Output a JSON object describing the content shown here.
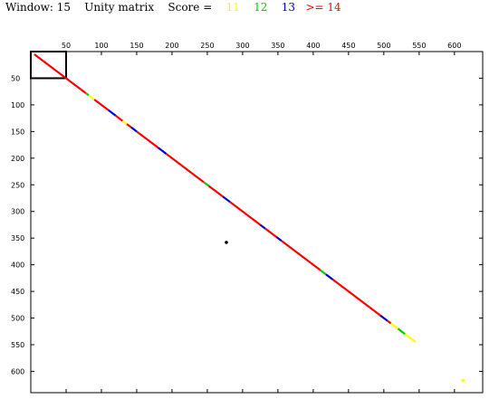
{
  "header": {
    "window_label": "Window: 15",
    "matrix_label": "Unity matrix",
    "score_label": "Score =",
    "score_levels": [
      {
        "label": "11",
        "color": "#ffff00"
      },
      {
        "label": "12",
        "color": "#00cc00"
      },
      {
        "label": "13",
        "color": "#0000cc"
      },
      {
        "label": ">= 14",
        "color": "#ff0000"
      }
    ]
  },
  "chart_data": {
    "type": "scatter",
    "title": "",
    "xlabel": "",
    "ylabel": "",
    "xlim": [
      0,
      640
    ],
    "ylim": [
      640,
      0
    ],
    "x_ticks": [
      50,
      100,
      150,
      200,
      250,
      300,
      350,
      400,
      450,
      500,
      550,
      600
    ],
    "y_ticks": [
      50,
      100,
      150,
      200,
      250,
      300,
      350,
      400,
      450,
      500,
      550,
      600
    ],
    "x_tick_position": "top",
    "y_tick_position": "left-and-right",
    "grid": false,
    "colors": {
      "score_11": "#ffff00",
      "score_12": "#00cc00",
      "score_13": "#0000cc",
      "score_14_plus": "#ff0000",
      "frame": "#000000"
    },
    "diagonal_segments": [
      {
        "score": ">= 14",
        "color": "#ff0000",
        "x": [
          5,
          50
        ],
        "y": [
          5,
          50
        ]
      },
      {
        "score": ">= 14",
        "color": "#ff0000",
        "x": [
          50,
          78
        ],
        "y": [
          50,
          78
        ]
      },
      {
        "score": "12",
        "color": "#00cc00",
        "x": [
          78,
          82
        ],
        "y": [
          78,
          82
        ]
      },
      {
        "score": "11",
        "color": "#ffff00",
        "x": [
          82,
          90
        ],
        "y": [
          82,
          90
        ]
      },
      {
        "score": ">= 14",
        "color": "#ff0000",
        "x": [
          90,
          110
        ],
        "y": [
          90,
          110
        ]
      },
      {
        "score": "13",
        "color": "#0000cc",
        "x": [
          110,
          120
        ],
        "y": [
          110,
          120
        ]
      },
      {
        "score": ">= 14",
        "color": "#ff0000",
        "x": [
          120,
          130
        ],
        "y": [
          120,
          130
        ]
      },
      {
        "score": "11",
        "color": "#ffff00",
        "x": [
          130,
          136
        ],
        "y": [
          130,
          136
        ]
      },
      {
        "score": ">= 14",
        "color": "#ff0000",
        "x": [
          136,
          142
        ],
        "y": [
          136,
          142
        ]
      },
      {
        "score": "13",
        "color": "#0000cc",
        "x": [
          142,
          150
        ],
        "y": [
          142,
          150
        ]
      },
      {
        "score": ">= 14",
        "color": "#ff0000",
        "x": [
          150,
          180
        ],
        "y": [
          150,
          180
        ]
      },
      {
        "score": "13",
        "color": "#0000cc",
        "x": [
          180,
          192
        ],
        "y": [
          180,
          192
        ]
      },
      {
        "score": ">= 14",
        "color": "#ff0000",
        "x": [
          192,
          245
        ],
        "y": [
          192,
          245
        ]
      },
      {
        "score": "12",
        "color": "#00cc00",
        "x": [
          245,
          252
        ],
        "y": [
          245,
          252
        ]
      },
      {
        "score": ">= 14",
        "color": "#ff0000",
        "x": [
          252,
          272
        ],
        "y": [
          252,
          272
        ]
      },
      {
        "score": "13",
        "color": "#0000cc",
        "x": [
          272,
          282
        ],
        "y": [
          272,
          282
        ]
      },
      {
        "score": ">= 14",
        "color": "#ff0000",
        "x": [
          282,
          325
        ],
        "y": [
          282,
          325
        ]
      },
      {
        "score": "13",
        "color": "#0000cc",
        "x": [
          325,
          332
        ],
        "y": [
          325,
          332
        ]
      },
      {
        "score": ">= 14",
        "color": "#ff0000",
        "x": [
          332,
          348
        ],
        "y": [
          332,
          348
        ]
      },
      {
        "score": "13",
        "color": "#0000cc",
        "x": [
          348,
          355
        ],
        "y": [
          348,
          355
        ]
      },
      {
        "score": ">= 14",
        "color": "#ff0000",
        "x": [
          355,
          410
        ],
        "y": [
          355,
          410
        ]
      },
      {
        "score": "12",
        "color": "#00cc00",
        "x": [
          410,
          418
        ],
        "y": [
          410,
          418
        ]
      },
      {
        "score": "13",
        "color": "#0000cc",
        "x": [
          418,
          428
        ],
        "y": [
          418,
          428
        ]
      },
      {
        "score": ">= 14",
        "color": "#ff0000",
        "x": [
          428,
          495
        ],
        "y": [
          428,
          495
        ]
      },
      {
        "score": "13",
        "color": "#0000cc",
        "x": [
          495,
          505
        ],
        "y": [
          495,
          505
        ]
      },
      {
        "score": ">= 14",
        "color": "#ff0000",
        "x": [
          505,
          510
        ],
        "y": [
          505,
          510
        ]
      },
      {
        "score": "11",
        "color": "#ffff00",
        "x": [
          510,
          520
        ],
        "y": [
          510,
          520
        ]
      },
      {
        "score": "12",
        "color": "#00cc00",
        "x": [
          520,
          530
        ],
        "y": [
          520,
          530
        ]
      },
      {
        "score": "11",
        "color": "#ffff00",
        "x": [
          530,
          545
        ],
        "y": [
          530,
          545
        ]
      }
    ],
    "points": [
      {
        "score": "11",
        "color": "#ffff00",
        "x": 612,
        "y": 617
      },
      {
        "score": "mark",
        "color": "#000000",
        "x": 277,
        "y": 358
      }
    ],
    "boxes": [
      {
        "color": "#000000",
        "x": [
          0,
          50
        ],
        "y": [
          0,
          50
        ]
      }
    ]
  }
}
